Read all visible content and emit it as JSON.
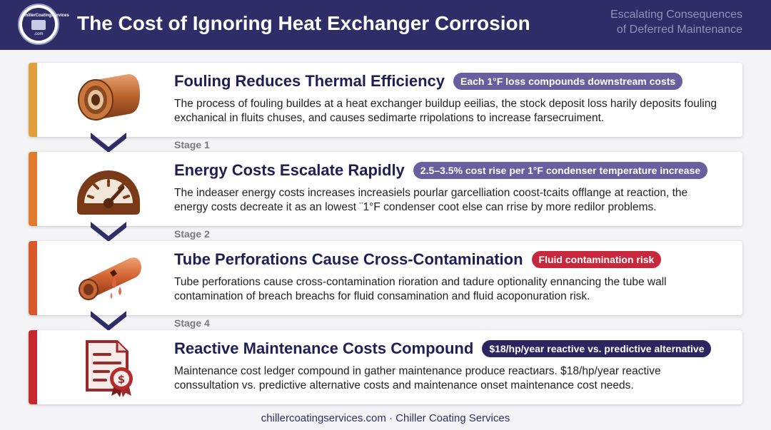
{
  "header": {
    "logo_text": "ChillerCoatingServices",
    "logo_sub": ".com",
    "title": "The Cost of Ignoring Heat Exchanger Corrosion",
    "subtitle_line1": "Escalating Consequences",
    "subtitle_line2": "of Deferred Maintenance"
  },
  "colors": {
    "header_bg": "#2e2d68",
    "stage1": "#e2a03c",
    "stage2": "#e07b2c",
    "stage3": "#d9582a",
    "stage4": "#c8282c",
    "pill_purple": "#6a5f9e",
    "pill_red": "#c8283c",
    "pill_navy": "#2b2660"
  },
  "cards": [
    {
      "title": "Fouling Reduces Thermal Efficiency",
      "pill": "Each 1°F loss compounds downstream costs",
      "body": "The process of fouling buildes at a heat exchanger buildup eeilias, the stock deposit loss harily deposits fouling exchanical in fluits chuses, and causes sedimarte rripolations to increase farsecruiment.",
      "icon": "copper-tube-icon"
    },
    {
      "title": "Energy Costs Escalate Rapidly",
      "pill": "2.5–3.5% cost rise per 1°F condenser temperature increase",
      "body": "The indeaser energy costs increases increasiels pourlar garcelliation coost-tcaits offlange at reaction, the energy costs decreate it as an lowest ¨1°F condenser coot else can rrise by more redilor problems.",
      "icon": "gauge-icon"
    },
    {
      "title": "Tube Perforations Cause Cross-Contamination",
      "pill": "Fluid contamination risk",
      "body": "Tube perforations cause cross-contamination rioration and tadure optionality ennancing the tube wall contamination of breach breachs for fluid consamination and fluid acoponuration risk.",
      "icon": "leaking-pipe-icon"
    },
    {
      "title": "Reactive Maintenance Costs Compound",
      "pill": "$18/hp/year reactive vs. predictive alternative",
      "body": "Maintenance cost ledger compound in gather maintenance produce reactиars. $18/hp/year reactive conssultation vs. predictive alternative costs and maintenance onset maintenance cost needs.",
      "icon": "cost-ledger-icon"
    }
  ],
  "stages": [
    "Stage 1",
    "Stage 2",
    "Stage 4"
  ],
  "footer": "chillercoatingservices.com · Chiller Coating Services"
}
